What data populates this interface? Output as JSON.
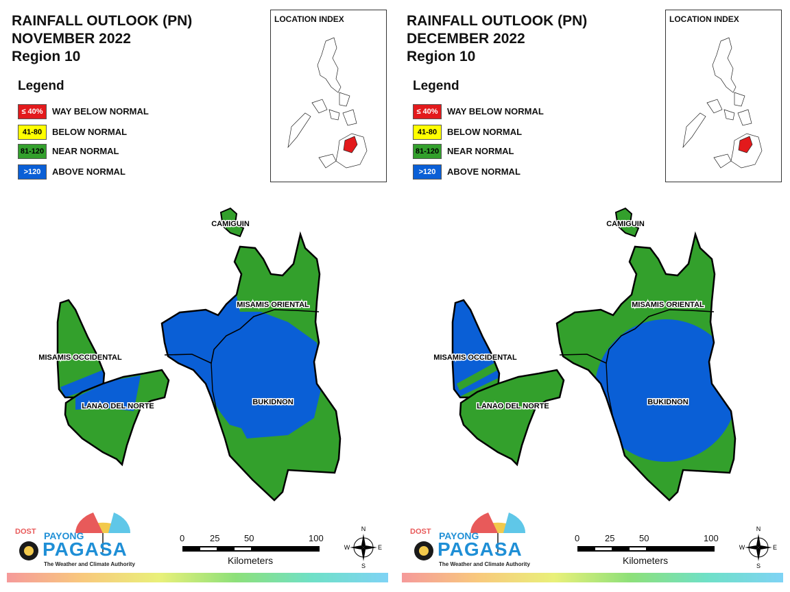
{
  "panels": [
    {
      "title_line1": "RAINFALL OUTLOOK (PN)",
      "title_line2": "NOVEMBER 2022",
      "title_line3": "Region 10",
      "provinces": {
        "camiguin": "CAMIGUIN",
        "misamis_oriental": "MISAMIS ORIENTAL",
        "misamis_occidental": "MISAMIS OCCIDENTAL",
        "lanao_del_norte": "LANAO DEL NORTE",
        "bukidnon": "BUKIDNON"
      }
    },
    {
      "title_line1": "RAINFALL OUTLOOK (PN)",
      "title_line2": "DECEMBER 2022",
      "title_line3": "Region 10",
      "provinces": {
        "camiguin": "CAMIGUIN",
        "misamis_oriental": "MISAMIS ORIENTAL",
        "misamis_occidental": "MISAMIS OCCIDENTAL",
        "lanao_del_norte": "LANAO DEL NORTE",
        "bukidnon": "BUKIDNON"
      }
    }
  ],
  "legend": {
    "title": "Legend",
    "items": [
      {
        "range": "≤ 40%",
        "label": "WAY BELOW NORMAL",
        "color": "#e31a1c",
        "text_color": "#ffffff"
      },
      {
        "range": "41-80",
        "label": "BELOW NORMAL",
        "color": "#ffff00",
        "text_color": "#000000"
      },
      {
        "range": "81-120",
        "label": "NEAR NORMAL",
        "color": "#33a02c",
        "text_color": "#000000"
      },
      {
        "range": ">120",
        "label": "ABOVE NORMAL",
        "color": "#0a5fd6",
        "text_color": "#ffffff"
      }
    ]
  },
  "location_index": {
    "title": "LOCATION INDEX"
  },
  "scale_bar": {
    "ticks": [
      "0",
      "25",
      "50",
      "100"
    ],
    "unit": "Kilometers"
  },
  "compass": {
    "n": "N",
    "s": "S",
    "e": "E",
    "w": "W"
  },
  "logo": {
    "dost": "DOST",
    "payong": "PAYONG",
    "pagasa": "PAGASA",
    "tagline": "The Weather and Climate Authority"
  },
  "colors": {
    "near_normal": "#33a02c",
    "above_normal": "#0a5fd6",
    "highlight": "#e31a1c",
    "logo_blue": "#1f8fd6"
  }
}
